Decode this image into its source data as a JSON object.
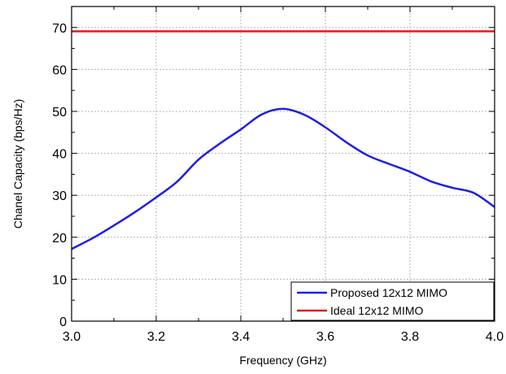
{
  "chart_data": {
    "type": "line",
    "xlabel": "Frequency (GHz)",
    "ylabel": "Chanel Capacity (bps/Hz)",
    "xlim": [
      3.0,
      4.0
    ],
    "ylim": [
      0,
      75
    ],
    "xticks": [
      3.0,
      3.2,
      3.4,
      3.6,
      3.8,
      4.0
    ],
    "xtick_labels": [
      "3.0",
      "3.2",
      "3.4",
      "3.6",
      "3.8",
      "4.0"
    ],
    "yticks": [
      0,
      10,
      20,
      30,
      40,
      50,
      60,
      70
    ],
    "ytick_labels": [
      "0",
      "10",
      "20",
      "30",
      "40",
      "50",
      "60",
      "70"
    ],
    "grid": true,
    "legend_position": "bottom-right",
    "series": [
      {
        "name": "Proposed 12x12 MIMO",
        "color": "#1f1fe6",
        "x": [
          3.0,
          3.05,
          3.1,
          3.15,
          3.2,
          3.25,
          3.3,
          3.35,
          3.4,
          3.45,
          3.5,
          3.55,
          3.6,
          3.65,
          3.7,
          3.75,
          3.8,
          3.85,
          3.9,
          3.95,
          4.0
        ],
        "y": [
          17.2,
          19.8,
          22.8,
          26.0,
          29.5,
          33.3,
          38.5,
          42.3,
          45.7,
          49.3,
          50.6,
          49.2,
          46.2,
          42.6,
          39.5,
          37.5,
          35.6,
          33.3,
          31.8,
          30.6,
          27.2
        ]
      },
      {
        "name": "Ideal 12x12 MIMO",
        "color": "#e01b1b",
        "x": [
          3.0,
          4.0
        ],
        "y": [
          69.1,
          69.1
        ]
      }
    ]
  }
}
